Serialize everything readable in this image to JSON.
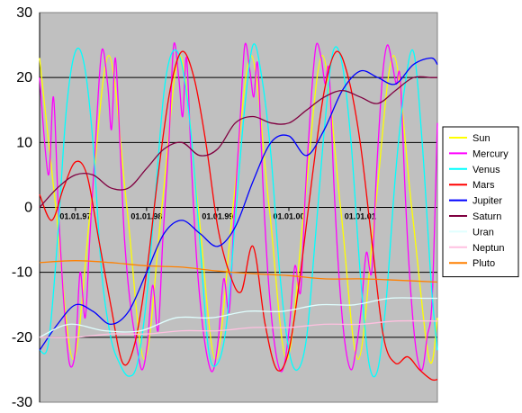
{
  "chart_data": {
    "type": "line",
    "title": "",
    "xlabel": "",
    "ylabel": "",
    "ylim": [
      -30,
      30
    ],
    "yticks": [
      30,
      20,
      10,
      0,
      -10,
      -20,
      -30
    ],
    "xlim": [
      "1996-07-01",
      "2002-02-01"
    ],
    "xtick_labels": [
      {
        "label": "01.01.97",
        "x": "1997-01-01"
      },
      {
        "label": "01.01.98",
        "x": "1998-01-01"
      },
      {
        "label": "01.01.99",
        "x": "1999-01-01"
      },
      {
        "label": "01.01.00",
        "x": "2000-01-01"
      },
      {
        "label": "01.01.01",
        "x": "2001-01-01"
      }
    ],
    "grid": "horizontal major lines",
    "plot_background": "#c0c0c0",
    "legend_placement": "right",
    "series": [
      {
        "name": "Sun",
        "color": "#ffff00",
        "x": [
          "1996-07-01",
          "1996-09-22",
          "1996-12-21",
          "1997-03-20",
          "1997-06-21",
          "1997-09-22",
          "1997-12-21",
          "1998-03-20",
          "1998-06-21",
          "1998-09-22",
          "1998-12-21",
          "1999-03-20",
          "1999-06-21",
          "1999-09-22",
          "1999-12-21",
          "2000-03-20",
          "2000-06-21",
          "2000-09-22",
          "2000-12-21",
          "2001-03-20",
          "2001-06-21",
          "2001-09-22",
          "2001-12-21",
          "2002-02-01"
        ],
        "y": [
          23,
          0,
          -23.4,
          0,
          23.4,
          0,
          -23.4,
          0,
          23.4,
          0,
          -23.4,
          0,
          23.4,
          0,
          -23.4,
          0,
          23.4,
          0,
          -23.4,
          0,
          23.4,
          0,
          -23.4,
          -17
        ]
      },
      {
        "name": "Mercury",
        "color": "#ff00ff",
        "x": [
          "1996-07-01",
          "1996-08-15",
          "1996-09-10",
          "1996-10-05",
          "1996-11-01",
          "1996-12-01",
          "1997-01-01",
          "1997-01-25",
          "1997-02-20",
          "1997-03-15",
          "1997-04-10",
          "1997-05-15",
          "1997-06-15",
          "1997-07-05",
          "1997-07-25",
          "1997-08-20",
          "1997-09-10",
          "1997-10-10",
          "1997-11-15",
          "1997-12-10",
          "1998-01-05",
          "1998-02-01",
          "1998-03-01",
          "1998-03-25",
          "1998-04-25",
          "1998-05-20",
          "1998-06-15",
          "1998-07-05",
          "1998-07-25",
          "1998-08-20",
          "1998-09-15",
          "1998-10-15",
          "1998-11-15",
          "1998-12-10",
          "1999-01-05",
          "1999-02-01",
          "1999-03-01",
          "1999-03-25",
          "1999-04-25",
          "1999-05-20",
          "1999-06-15",
          "1999-07-05",
          "1999-07-25",
          "1999-08-20",
          "1999-09-15",
          "1999-10-15",
          "1999-11-15",
          "1999-12-10",
          "2000-01-05",
          "2000-02-01",
          "2000-03-01",
          "2000-03-25",
          "2000-04-25",
          "2000-05-20",
          "2000-06-15",
          "2000-07-05",
          "2000-07-25",
          "2000-08-20",
          "2000-09-15",
          "2000-10-15",
          "2000-11-15",
          "2000-12-10",
          "2001-01-05",
          "2001-02-01",
          "2001-03-01",
          "2001-03-25",
          "2001-04-25",
          "2001-05-20",
          "2001-06-15",
          "2001-07-05",
          "2001-07-25",
          "2001-08-20",
          "2001-09-15",
          "2001-10-15",
          "2001-11-15",
          "2001-12-10",
          "2002-01-05",
          "2002-02-01"
        ],
        "y": [
          20,
          5,
          17,
          0,
          -14,
          -24,
          -22,
          -10,
          -17,
          -5,
          8,
          24,
          19,
          12,
          23,
          8,
          -5,
          -15,
          -22,
          -25,
          -21,
          -12,
          -19,
          -5,
          10,
          25,
          20,
          14,
          23,
          6,
          -8,
          -18,
          -24,
          -25,
          -20,
          -11,
          -16,
          -2,
          13,
          25,
          21,
          17,
          22,
          4,
          -10,
          -20,
          -25,
          -24,
          -18,
          -9,
          -13,
          2,
          17,
          25,
          23,
          19,
          21,
          3,
          -11,
          -21,
          -25,
          -22,
          -16,
          -7,
          -10,
          5,
          20,
          25,
          22,
          19,
          20,
          2,
          -12,
          -22,
          -25,
          -20,
          -14,
          13
        ]
      },
      {
        "name": "Venus",
        "color": "#00ffff",
        "x": [
          "1996-07-01",
          "1996-08-15",
          "1996-10-01",
          "1996-11-15",
          "1997-01-01",
          "1997-02-15",
          "1997-04-01",
          "1997-05-15",
          "1997-07-01",
          "1997-08-15",
          "1997-10-01",
          "1997-11-15",
          "1998-01-01",
          "1998-02-15",
          "1998-04-01",
          "1998-05-15",
          "1998-07-01",
          "1998-08-15",
          "1998-10-01",
          "1998-11-15",
          "1999-01-01",
          "1999-02-15",
          "1999-04-01",
          "1999-05-15",
          "1999-07-01",
          "1999-08-15",
          "1999-10-01",
          "1999-11-15",
          "2000-01-01",
          "2000-02-15",
          "2000-04-01",
          "2000-05-15",
          "2000-07-01",
          "2000-08-15",
          "2000-10-01",
          "2000-11-15",
          "2001-01-01",
          "2001-02-15",
          "2001-04-01",
          "2001-05-15",
          "2001-07-01",
          "2001-08-15",
          "2001-10-01",
          "2001-11-15",
          "2002-01-01",
          "2002-02-01"
        ],
        "y": [
          -22,
          -21,
          -5,
          15,
          24,
          22,
          10,
          -10,
          -20,
          -24,
          -26,
          -24,
          -14,
          2,
          18,
          24,
          22,
          12,
          -5,
          -22,
          -24,
          -18,
          -2,
          14,
          25,
          20,
          8,
          -10,
          -22,
          -25,
          -20,
          -5,
          12,
          24,
          22,
          10,
          -10,
          -24,
          -25,
          -14,
          5,
          18,
          24,
          10,
          -12,
          -22
        ]
      },
      {
        "name": "Mars",
        "color": "#ff0000",
        "x": [
          "1996-07-01",
          "1996-09-01",
          "1996-11-01",
          "1997-01-01",
          "1997-03-01",
          "1997-05-01",
          "1997-07-01",
          "1997-09-01",
          "1997-11-01",
          "1998-01-01",
          "1998-03-01",
          "1998-05-01",
          "1998-07-01",
          "1998-09-01",
          "1998-11-01",
          "1999-01-01",
          "1999-03-01",
          "1999-05-01",
          "1999-07-01",
          "1999-09-01",
          "1999-11-01",
          "2000-01-01",
          "2000-03-01",
          "2000-05-01",
          "2000-07-01",
          "2000-09-01",
          "2000-11-01",
          "2001-01-01",
          "2001-03-01",
          "2001-05-01",
          "2001-07-01",
          "2001-09-01",
          "2001-11-01",
          "2002-01-01",
          "2002-02-01"
        ],
        "y": [
          2,
          -2,
          3,
          7,
          5,
          -5,
          -15,
          -24,
          -21,
          -10,
          5,
          18,
          24,
          20,
          10,
          -3,
          -10,
          -13,
          -6,
          -18,
          -25,
          -22,
          -10,
          5,
          18,
          24,
          20,
          10,
          -5,
          -20,
          -24,
          -23,
          -25,
          -26.5,
          -26.5
        ]
      },
      {
        "name": "Jupiter",
        "color": "#0000ff",
        "x": [
          "1996-07-01",
          "1996-10-01",
          "1997-01-01",
          "1997-04-01",
          "1997-07-01",
          "1997-10-01",
          "1998-01-01",
          "1998-04-01",
          "1998-07-01",
          "1998-10-01",
          "1999-01-01",
          "1999-04-01",
          "1999-07-01",
          "1999-10-01",
          "2000-01-01",
          "2000-04-01",
          "2000-07-01",
          "2000-10-01",
          "2001-01-01",
          "2001-04-01",
          "2001-07-01",
          "2001-10-01",
          "2002-01-01",
          "2002-02-01"
        ],
        "y": [
          -22,
          -18,
          -15,
          -16,
          -18,
          -16,
          -10,
          -4,
          -2,
          -4,
          -6,
          -3,
          4,
          10,
          11,
          8,
          12,
          18,
          21,
          20,
          19,
          22,
          23,
          22
        ]
      },
      {
        "name": "Saturn",
        "color": "#800040",
        "x": [
          "1996-07-01",
          "1996-10-01",
          "1997-01-01",
          "1997-04-01",
          "1997-07-01",
          "1997-10-01",
          "1998-01-01",
          "1998-04-01",
          "1998-07-01",
          "1998-10-01",
          "1999-01-01",
          "1999-04-01",
          "1999-07-01",
          "1999-10-01",
          "2000-01-01",
          "2000-04-01",
          "2000-07-01",
          "2000-10-01",
          "2001-01-01",
          "2001-04-01",
          "2001-07-01",
          "2001-10-01",
          "2002-01-01",
          "2002-02-01"
        ],
        "y": [
          0,
          3,
          5,
          5,
          3,
          3,
          6,
          9,
          10,
          8,
          9,
          13,
          14,
          13,
          13,
          15,
          17,
          18,
          17,
          16,
          18,
          20,
          20,
          20
        ]
      },
      {
        "name": "Uran",
        "color": "#e0ffff",
        "x": [
          "1996-07-01",
          "1996-12-01",
          "1997-06-01",
          "1997-12-01",
          "1998-06-01",
          "1998-12-01",
          "1999-06-01",
          "1999-12-01",
          "2000-06-01",
          "2000-12-01",
          "2001-06-01",
          "2001-12-01",
          "2002-02-01"
        ],
        "y": [
          -20,
          -18,
          -19,
          -19,
          -17,
          -17,
          -16,
          -16,
          -15,
          -15,
          -14,
          -14,
          -14
        ]
      },
      {
        "name": "Neptun",
        "color": "#ffc0e0",
        "x": [
          "1996-07-01",
          "1997-01-01",
          "1997-07-01",
          "1998-01-01",
          "1998-07-01",
          "1999-01-01",
          "1999-07-01",
          "2000-01-01",
          "2000-07-01",
          "2001-01-01",
          "2001-07-01",
          "2002-02-01"
        ],
        "y": [
          -20,
          -20,
          -19.5,
          -19.5,
          -19,
          -19,
          -18.5,
          -18.5,
          -18,
          -18,
          -17.5,
          -17.5
        ]
      },
      {
        "name": "Pluto",
        "color": "#ff8000",
        "x": [
          "1996-07-01",
          "1997-01-01",
          "1997-07-01",
          "1998-01-01",
          "1998-07-01",
          "1999-01-01",
          "1999-07-01",
          "2000-01-01",
          "2000-07-01",
          "2001-01-01",
          "2001-07-01",
          "2002-02-01"
        ],
        "y": [
          -8.5,
          -8.2,
          -8.5,
          -9,
          -9.2,
          -9.8,
          -10.2,
          -10.5,
          -11,
          -11,
          -11.2,
          -11.5
        ]
      }
    ]
  }
}
